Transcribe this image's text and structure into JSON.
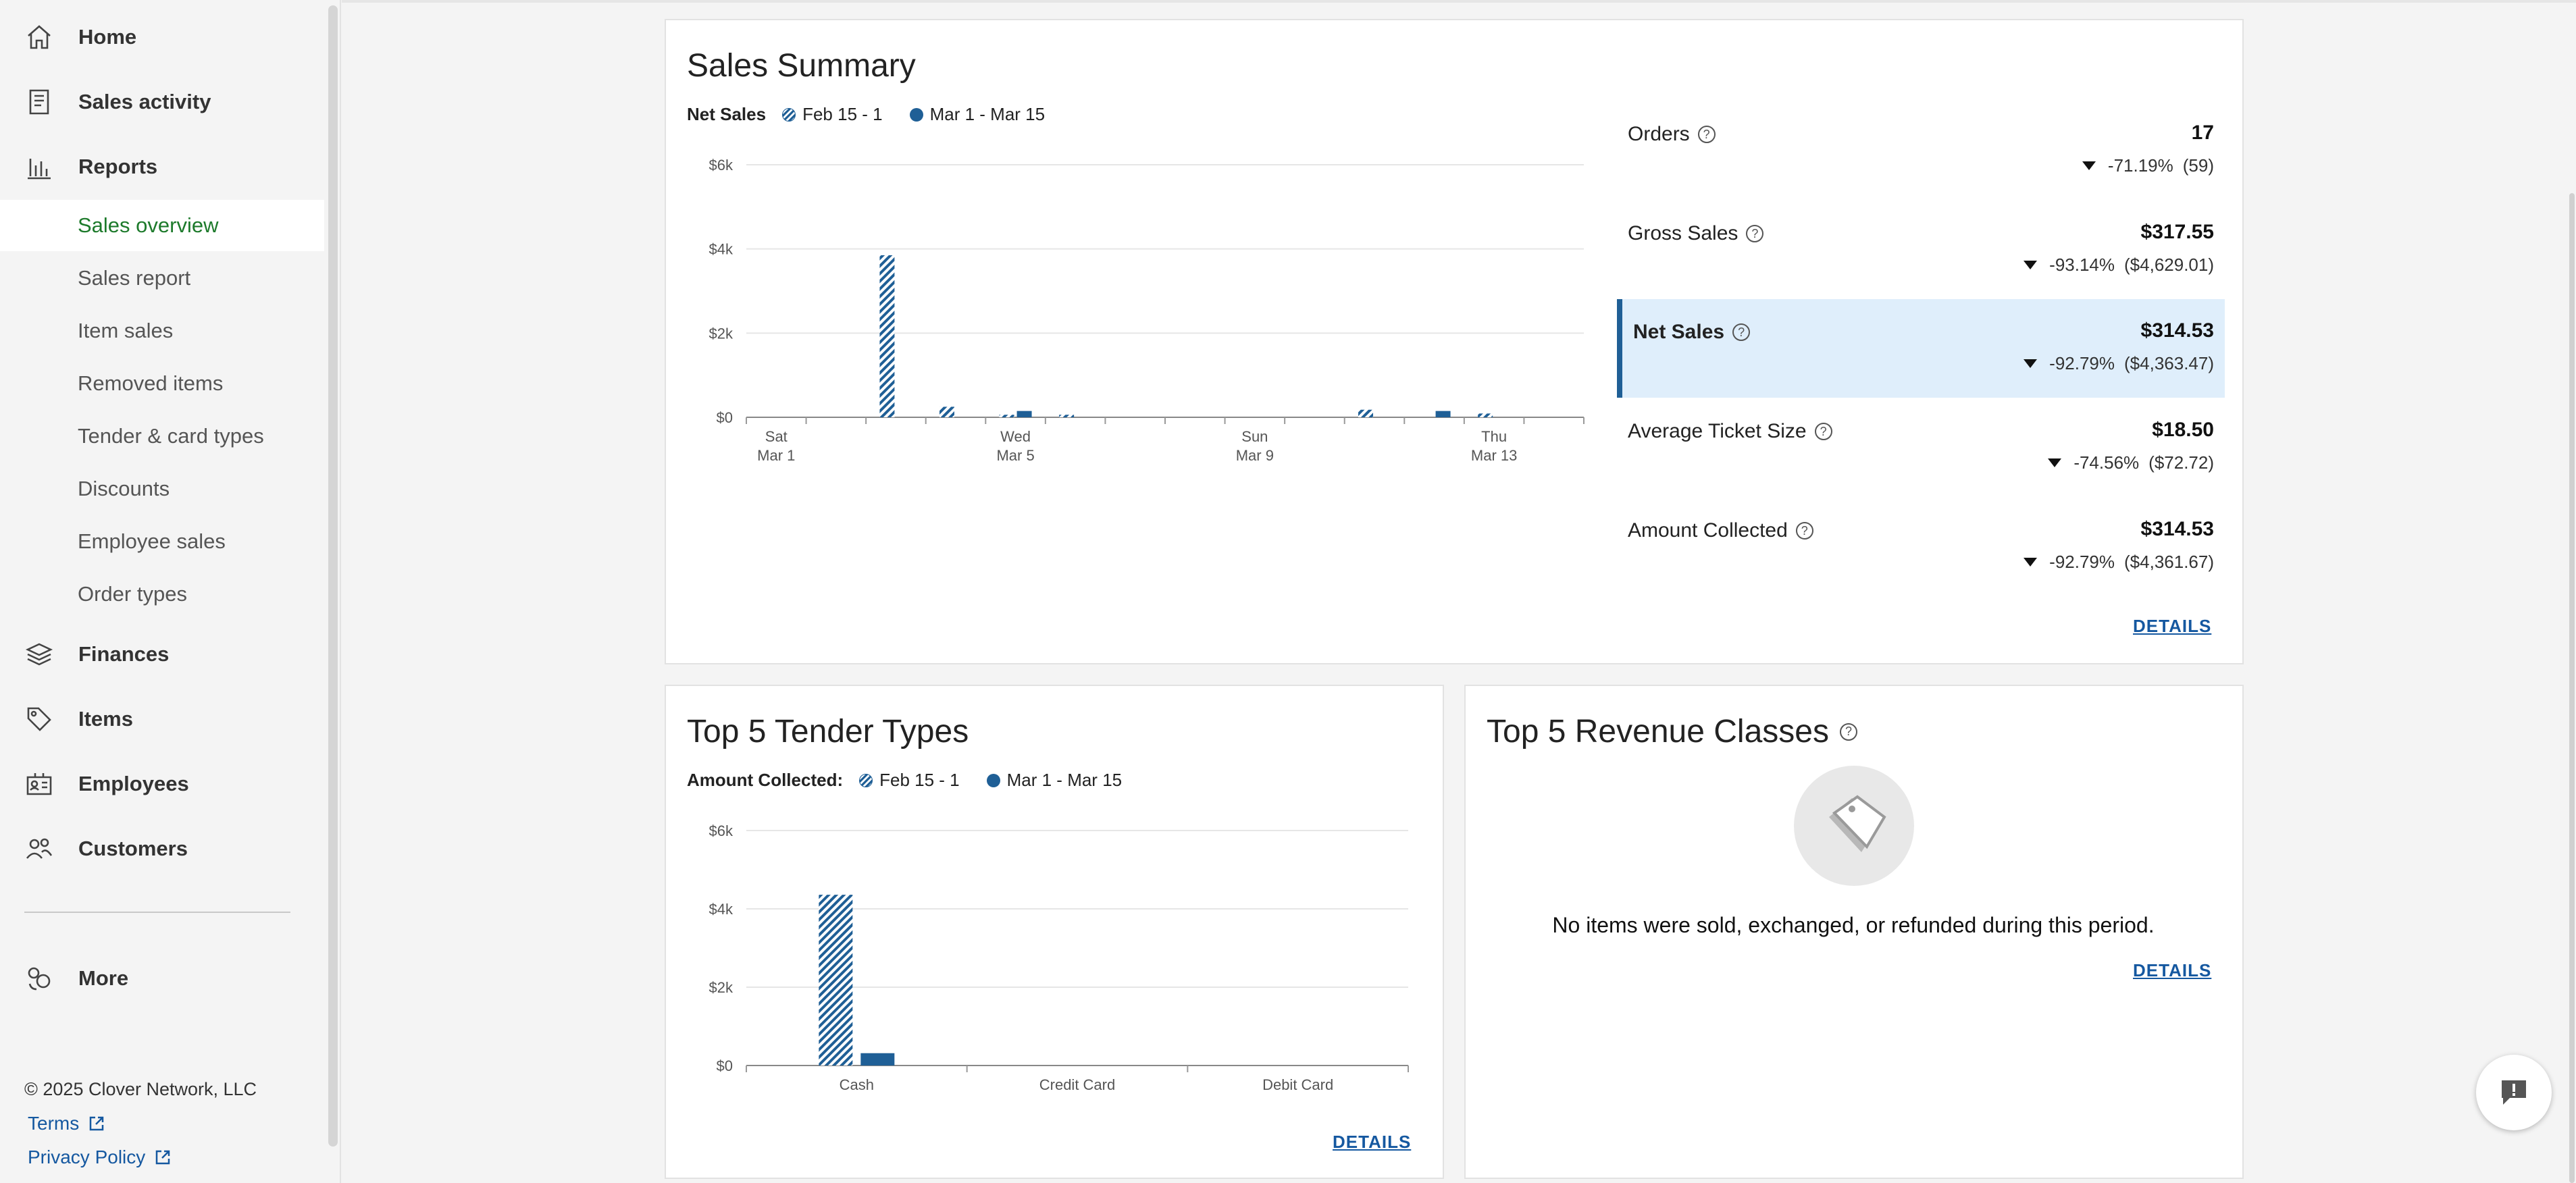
{
  "sidebar": {
    "items": [
      {
        "label": "Home",
        "icon": "home-icon"
      },
      {
        "label": "Sales activity",
        "icon": "receipt-icon"
      },
      {
        "label": "Reports",
        "icon": "bar-chart-icon"
      },
      {
        "label": "Finances",
        "icon": "layers-icon"
      },
      {
        "label": "Items",
        "icon": "tag-icon"
      },
      {
        "label": "Employees",
        "icon": "id-badge-icon"
      },
      {
        "label": "Customers",
        "icon": "people-icon"
      },
      {
        "label": "More",
        "icon": "more-icon"
      }
    ],
    "report_subitems": [
      {
        "label": "Sales overview",
        "active": true
      },
      {
        "label": "Sales report"
      },
      {
        "label": "Item sales"
      },
      {
        "label": "Removed items"
      },
      {
        "label": "Tender & card types"
      },
      {
        "label": "Discounts"
      },
      {
        "label": "Employee sales"
      },
      {
        "label": "Order types"
      }
    ],
    "copyright": "© 2025 Clover Network, LLC",
    "terms": "Terms",
    "privacy": "Privacy Policy"
  },
  "sales_summary": {
    "title": "Sales Summary",
    "legend_label": "Net Sales",
    "legend_prev": "Feb 15 - 1",
    "legend_curr": "Mar 1 - Mar 15",
    "details": "DETAILS",
    "metrics": [
      {
        "name": "Orders",
        "value": "17",
        "change": "-71.19%",
        "previous": "(59)"
      },
      {
        "name": "Gross Sales",
        "value": "$317.55",
        "change": "-93.14%",
        "previous": "($4,629.01)"
      },
      {
        "name": "Net Sales",
        "value": "$314.53",
        "change": "-92.79%",
        "previous": "($4,363.47)",
        "highlight": true
      },
      {
        "name": "Average Ticket Size",
        "value": "$18.50",
        "change": "-74.56%",
        "previous": "($72.72)"
      },
      {
        "name": "Amount Collected",
        "value": "$314.53",
        "change": "-92.79%",
        "previous": "($4,361.67)"
      }
    ]
  },
  "tender_types": {
    "title": "Top 5 Tender Types",
    "legend_label": "Amount Collected:",
    "legend_prev": "Feb 15 - 1",
    "legend_curr": "Mar 1 - Mar 15",
    "details": "DETAILS"
  },
  "revenue_classes": {
    "title": "Top 5 Revenue Classes",
    "empty_message": "No items were sold, exchanged, or refunded during this period.",
    "details": "DETAILS"
  },
  "colors": {
    "accent": "#1f5f96",
    "active_nav": "#1d7a2b",
    "link": "#1558a0",
    "highlight_bg": "#dfeefb"
  },
  "chart_data": [
    {
      "type": "bar",
      "title": "Net Sales",
      "x_tick_labels": [
        [
          "Sat",
          "Mar 1"
        ],
        [
          "Wed",
          "Mar 5"
        ],
        [
          "Sun",
          "Mar 9"
        ],
        [
          "Thu",
          "Mar 13"
        ]
      ],
      "y_tick_labels": [
        "$0",
        "$2k",
        "$4k",
        "$6k"
      ],
      "ylim": [
        0,
        6000
      ],
      "days": 14,
      "series": [
        {
          "name": "Feb 15 - 1",
          "style": "hatched",
          "values": [
            0,
            0,
            3850,
            250,
            60,
            60,
            0,
            0,
            0,
            0,
            180,
            0,
            90,
            0
          ]
        },
        {
          "name": "Mar 1 - Mar 15",
          "style": "solid",
          "values": [
            0,
            0,
            0,
            0,
            150,
            0,
            0,
            0,
            0,
            0,
            0,
            150,
            0,
            0
          ]
        }
      ]
    },
    {
      "type": "bar",
      "title": "Amount Collected:",
      "categories": [
        "Cash",
        "Credit Card",
        "Debit Card"
      ],
      "y_tick_labels": [
        "$0",
        "$2k",
        "$4k",
        "$6k"
      ],
      "ylim": [
        0,
        6000
      ],
      "series": [
        {
          "name": "Feb 15 - 1",
          "style": "hatched",
          "values": [
            4360,
            0,
            0
          ]
        },
        {
          "name": "Mar 1 - Mar 15",
          "style": "solid",
          "values": [
            315,
            0,
            0
          ]
        }
      ]
    }
  ]
}
